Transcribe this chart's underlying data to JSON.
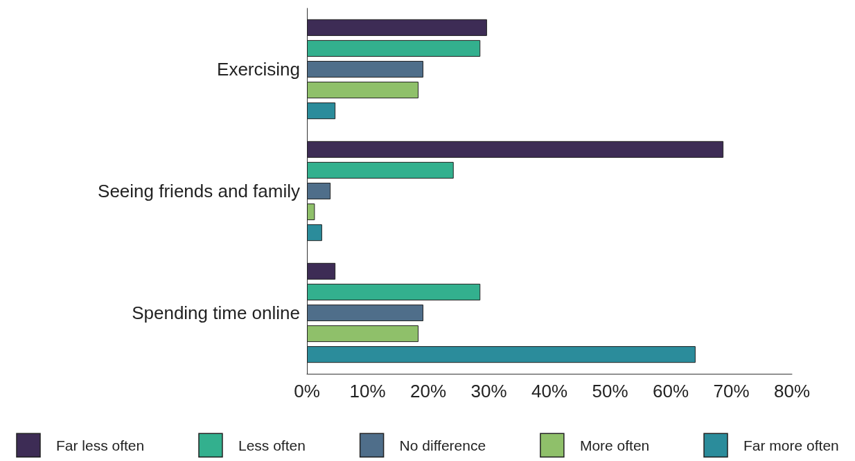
{
  "chart_data": {
    "type": "bar",
    "orientation": "horizontal",
    "categories": [
      "Exercising",
      "Seeing friends and family",
      "Spending time online"
    ],
    "series": [
      {
        "name": "Far less often",
        "color": "#3d2c55",
        "values": [
          29.7,
          68.7,
          4.7
        ]
      },
      {
        "name": "Less often",
        "color": "#33b08e",
        "values": [
          28.6,
          24.2,
          28.6
        ]
      },
      {
        "name": "No difference",
        "color": "#4f6e8a",
        "values": [
          19.2,
          3.9,
          19.2
        ]
      },
      {
        "name": "More often",
        "color": "#8fc06a",
        "values": [
          18.4,
          1.3,
          18.4
        ]
      },
      {
        "name": "Far more often",
        "color": "#2b8c9b",
        "values": [
          4.7,
          2.5,
          64.1
        ]
      }
    ],
    "xlim": [
      0,
      80
    ],
    "xticks": [
      {
        "value": 0,
        "label": "0%"
      },
      {
        "value": 10,
        "label": "10%"
      },
      {
        "value": 20,
        "label": "20%"
      },
      {
        "value": 30,
        "label": "30%"
      },
      {
        "value": 40,
        "label": "40%"
      },
      {
        "value": 50,
        "label": "50%"
      },
      {
        "value": 60,
        "label": "60%"
      },
      {
        "value": 70,
        "label": "70%"
      },
      {
        "value": 80,
        "label": "80%"
      }
    ],
    "grid": false,
    "legend": "bottom"
  }
}
